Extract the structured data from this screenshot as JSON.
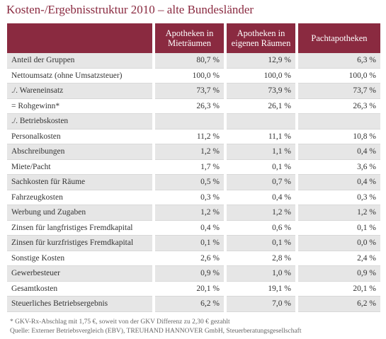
{
  "title": "Kosten-/Ergebnisstruktur 2010 – alte Bundesländer",
  "table": {
    "headers": [
      "Apotheken in Mieträumen",
      "Apotheken in eigenen Räumen",
      "Pachtapotheken"
    ],
    "rows": [
      [
        "Anteil der Gruppen",
        "80,7 %",
        "12,9 %",
        "6,3 %"
      ],
      [
        "Nettoumsatz (ohne Umsatzsteuer)",
        "100,0 %",
        "100,0 %",
        "100,0 %"
      ],
      [
        "./. Wareneinsatz",
        "73,7 %",
        "73,9 %",
        "73,7 %"
      ],
      [
        "= Rohgewinn*",
        "26,3 %",
        "26,1 %",
        "26,3 %"
      ],
      [
        "./. Betriebskosten"
      ],
      [
        "Personalkosten",
        "11,2 %",
        "11,1 %",
        "10,8 %"
      ],
      [
        "Abschreibungen",
        "1,2 %",
        "1,1 %",
        "0,4 %"
      ],
      [
        "Miete/Pacht",
        "1,7 %",
        "0,1 %",
        "3,6 %"
      ],
      [
        "Sachkosten für Räume",
        "0,5 %",
        "0,7 %",
        "0,4 %"
      ],
      [
        "Fahrzeugkosten",
        "0,3 %",
        "0,4 %",
        "0,3 %"
      ],
      [
        "Werbung und Zugaben",
        "1,2 %",
        "1,2 %",
        "1,2 %"
      ],
      [
        "Zinsen für langfristiges Fremdkapital",
        "0,4 %",
        "0,6 %",
        "0,1 %"
      ],
      [
        "Zinsen für kurzfristiges Fremdkapital",
        "0,1 %",
        "0,1 %",
        "0,0 %"
      ],
      [
        "Sonstige Kosten",
        "2,6 %",
        "2,8 %",
        "2,4 %"
      ],
      [
        "Gewerbesteuer",
        "0,9 %",
        "1,0 %",
        "0,9 %"
      ],
      [
        "Gesamtkosten",
        "20,1 %",
        "19,1 %",
        "20,1 %"
      ],
      [
        "Steuerliches Betriebsergebnis",
        "6,2 %",
        "7,0 %",
        "6,2 %"
      ]
    ]
  },
  "footnotes": [
    "* GKV-Rx-Abschlag mit 1,75 €, soweit von der GKV Differenz zu 2,30 € gezahlt",
    "Quelle: Externer Betriebsvergleich (EBV), TREUHAND HANNOVER GmbH, Steuerberatungsgesellschaft"
  ]
}
